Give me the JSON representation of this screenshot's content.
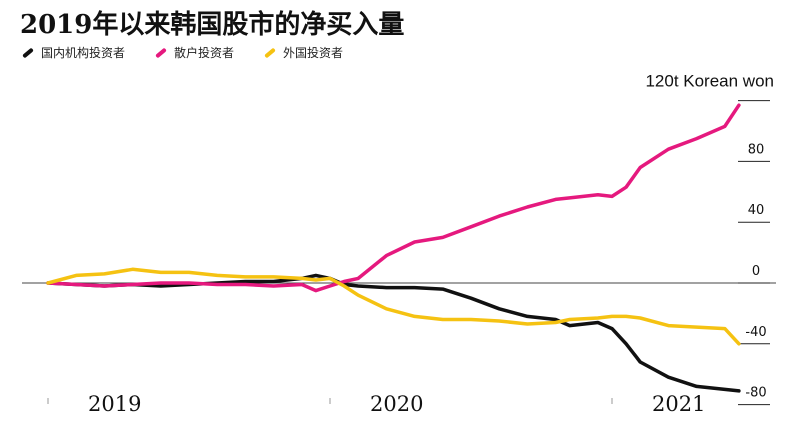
{
  "chart_data": {
    "type": "line",
    "title": "2019年以来韩国股市的净买入量",
    "unit_label": "120t Korean won",
    "ylim": [
      -85,
      122
    ],
    "yticks": [
      120,
      80,
      40,
      0,
      -40,
      -80
    ],
    "ytick_labels": [
      "",
      "80",
      "40",
      "0",
      "-40",
      "-80"
    ],
    "xlim": [
      0,
      2.6
    ],
    "xticks": [
      {
        "x": 0,
        "label": "2019"
      },
      {
        "x": 1,
        "label": "2020"
      },
      {
        "x": 2,
        "label": "2021"
      }
    ],
    "grid": false,
    "legend_position": "top-left",
    "series": [
      {
        "name": "国内机构投资者",
        "color": "#111111",
        "points": [
          [
            0,
            0
          ],
          [
            0.1,
            -1
          ],
          [
            0.2,
            -2
          ],
          [
            0.3,
            -1
          ],
          [
            0.4,
            -2
          ],
          [
            0.5,
            -1
          ],
          [
            0.6,
            0
          ],
          [
            0.7,
            1
          ],
          [
            0.8,
            1
          ],
          [
            0.9,
            3
          ],
          [
            0.95,
            5
          ],
          [
            1.0,
            3
          ],
          [
            1.05,
            -1
          ],
          [
            1.1,
            -2
          ],
          [
            1.2,
            -3
          ],
          [
            1.3,
            -3
          ],
          [
            1.4,
            -4
          ],
          [
            1.5,
            -10
          ],
          [
            1.6,
            -17
          ],
          [
            1.7,
            -22
          ],
          [
            1.8,
            -24
          ],
          [
            1.85,
            -28
          ],
          [
            1.95,
            -26
          ],
          [
            2.0,
            -30
          ],
          [
            2.05,
            -40
          ],
          [
            2.1,
            -52
          ],
          [
            2.2,
            -62
          ],
          [
            2.3,
            -68
          ],
          [
            2.4,
            -70
          ],
          [
            2.45,
            -71
          ]
        ]
      },
      {
        "name": "散户投资者",
        "color": "#e5197e",
        "points": [
          [
            0,
            0
          ],
          [
            0.1,
            -1
          ],
          [
            0.2,
            -2
          ],
          [
            0.3,
            -1
          ],
          [
            0.4,
            0
          ],
          [
            0.5,
            0
          ],
          [
            0.6,
            -1
          ],
          [
            0.7,
            -1
          ],
          [
            0.8,
            -2
          ],
          [
            0.9,
            -1
          ],
          [
            0.95,
            -5
          ],
          [
            1.0,
            -2
          ],
          [
            1.05,
            1
          ],
          [
            1.1,
            3
          ],
          [
            1.2,
            18
          ],
          [
            1.3,
            27
          ],
          [
            1.4,
            30
          ],
          [
            1.5,
            37
          ],
          [
            1.6,
            44
          ],
          [
            1.7,
            50
          ],
          [
            1.8,
            55
          ],
          [
            1.85,
            56
          ],
          [
            1.95,
            58
          ],
          [
            2.0,
            57
          ],
          [
            2.05,
            63
          ],
          [
            2.1,
            76
          ],
          [
            2.2,
            88
          ],
          [
            2.3,
            95
          ],
          [
            2.4,
            103
          ],
          [
            2.45,
            117
          ]
        ]
      },
      {
        "name": "外国投资者",
        "color": "#f5c212",
        "points": [
          [
            0,
            0
          ],
          [
            0.1,
            5
          ],
          [
            0.2,
            6
          ],
          [
            0.3,
            9
          ],
          [
            0.4,
            7
          ],
          [
            0.5,
            7
          ],
          [
            0.6,
            5
          ],
          [
            0.7,
            4
          ],
          [
            0.8,
            4
          ],
          [
            0.9,
            3
          ],
          [
            0.95,
            2
          ],
          [
            1.0,
            3
          ],
          [
            1.05,
            -2
          ],
          [
            1.1,
            -8
          ],
          [
            1.2,
            -17
          ],
          [
            1.3,
            -22
          ],
          [
            1.4,
            -24
          ],
          [
            1.5,
            -24
          ],
          [
            1.6,
            -25
          ],
          [
            1.7,
            -27
          ],
          [
            1.8,
            -26
          ],
          [
            1.85,
            -24
          ],
          [
            1.95,
            -23
          ],
          [
            2.0,
            -22
          ],
          [
            2.05,
            -22
          ],
          [
            2.1,
            -23
          ],
          [
            2.2,
            -28
          ],
          [
            2.3,
            -29
          ],
          [
            2.4,
            -30
          ],
          [
            2.45,
            -40
          ]
        ]
      }
    ]
  }
}
